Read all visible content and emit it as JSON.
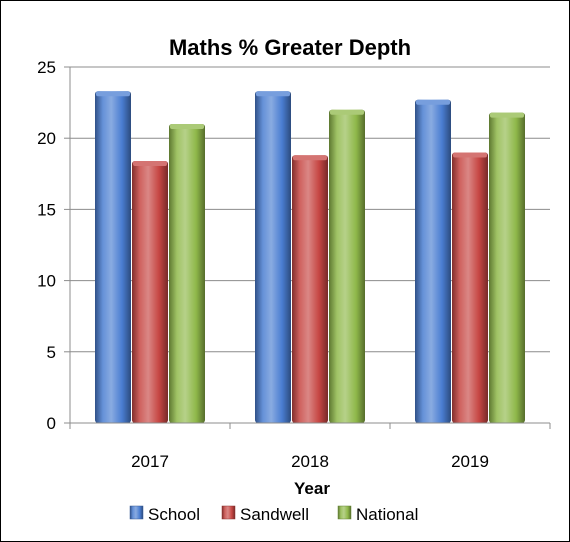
{
  "chart_data": {
    "type": "bar",
    "title": "Maths % Greater Depth",
    "xlabel": "Year",
    "ylabel": "",
    "categories": [
      "2017",
      "2018",
      "2019"
    ],
    "series": [
      {
        "name": "School",
        "values": [
          23.3,
          23.3,
          22.7
        ],
        "color": "#4a7dd1"
      },
      {
        "name": "Sandwell",
        "values": [
          18.4,
          18.8,
          19.0
        ],
        "color": "#c64643"
      },
      {
        "name": "National",
        "values": [
          21.0,
          22.0,
          21.8
        ],
        "color": "#8fb84a"
      }
    ],
    "ylim": [
      0,
      25
    ],
    "yticks": [
      "0",
      "5",
      "10",
      "15",
      "20",
      "25"
    ],
    "grid": true,
    "legend_position": "bottom"
  }
}
